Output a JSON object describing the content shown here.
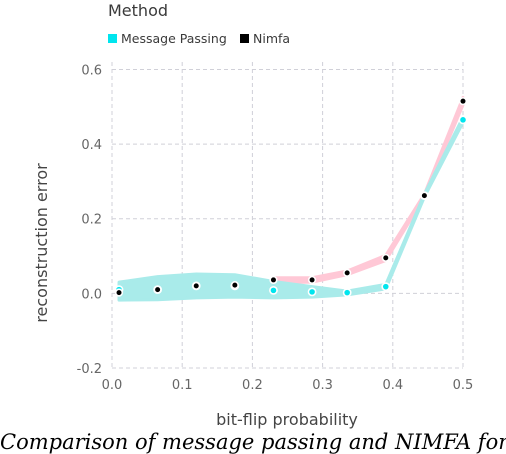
{
  "chart_data": {
    "type": "line",
    "title": "",
    "xlabel": "bit-flip probability",
    "ylabel": "reconstruction error",
    "xlim": [
      0,
      0.5
    ],
    "ylim": [
      -0.2,
      0.62
    ],
    "x_ticks": [
      0.0,
      0.1,
      0.2,
      0.3,
      0.4,
      0.5
    ],
    "x_tick_labels": [
      "0.0",
      "0.1",
      "0.2",
      "0.3",
      "0.4",
      "0.5"
    ],
    "y_ticks": [
      -0.2,
      0.0,
      0.2,
      0.4,
      0.6
    ],
    "y_tick_labels": [
      "-0.2",
      "0.0",
      "0.2",
      "0.4",
      "0.6"
    ],
    "grid": true,
    "legend": {
      "title": "Method",
      "placement": "top-left"
    },
    "series": [
      {
        "name": "Message Passing",
        "color": "#00e5ee",
        "band_color": "#a9ebea",
        "x": [
          0.01,
          0.065,
          0.12,
          0.175,
          0.23,
          0.285,
          0.335,
          0.39,
          0.445,
          0.5
        ],
        "y": [
          0.01,
          0.01,
          0.02,
          0.02,
          0.008,
          0.004,
          0.002,
          0.018,
          0.262,
          0.465
        ],
        "lower": [
          -0.018,
          -0.017,
          -0.012,
          -0.01,
          -0.012,
          -0.01,
          -0.004,
          0.012,
          0.258,
          0.458
        ],
        "upper": [
          0.03,
          0.045,
          0.052,
          0.05,
          0.032,
          0.018,
          0.006,
          0.024,
          0.266,
          0.472
        ]
      },
      {
        "name": "Nimfa",
        "color": "#000000",
        "band_color": "#ffc8d6",
        "x": [
          0.01,
          0.065,
          0.12,
          0.175,
          0.23,
          0.285,
          0.335,
          0.39,
          0.445,
          0.5
        ],
        "y": [
          0.002,
          0.01,
          0.02,
          0.022,
          0.036,
          0.036,
          0.055,
          0.095,
          0.262,
          0.515
        ],
        "lower": [
          null,
          null,
          null,
          null,
          0.028,
          0.03,
          0.05,
          0.088,
          0.258,
          0.505
        ],
        "upper": [
          null,
          null,
          null,
          null,
          0.042,
          0.042,
          0.06,
          0.102,
          0.266,
          0.525
        ]
      }
    ]
  },
  "caption": "Comparison of message passing and NIMFA for"
}
